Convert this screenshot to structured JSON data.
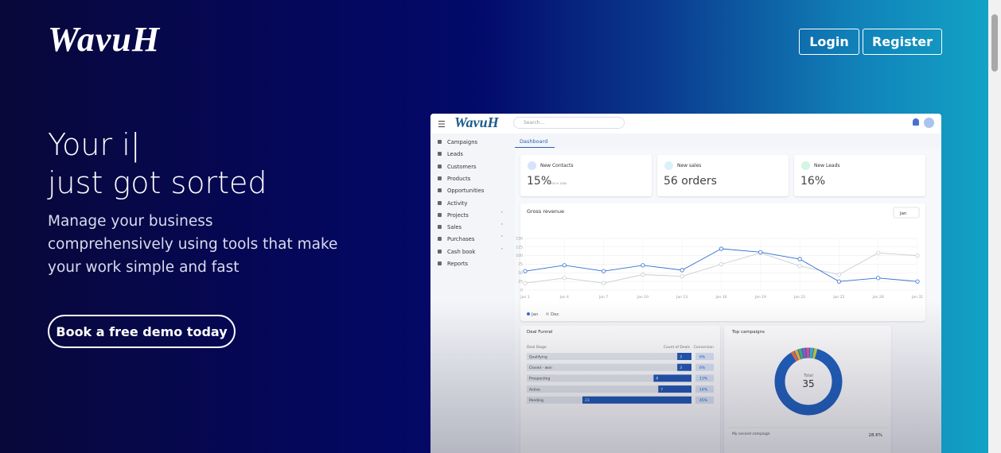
{
  "header": {
    "logo": "WavuH",
    "login": "Login",
    "register": "Register"
  },
  "hero": {
    "title_line1": "Your i|",
    "title_line2": "just got sorted",
    "subtitle": "Manage your business comprehensively using tools that make your work simple and fast",
    "cta": "Book a free demo today"
  },
  "dashboard": {
    "logo": "WavuH",
    "search": "Search...",
    "tab": "Dashboard",
    "menu": [
      "Campaigns",
      "Leads",
      "Customers",
      "Products",
      "Opportunities",
      "Activity",
      "Projects",
      "Sales",
      "Purchases",
      "Cash book",
      "Reports"
    ],
    "cards": [
      {
        "label": "New Contacts",
        "value": "15%",
        "note": "2500 in 2000"
      },
      {
        "label": "New sales",
        "value": "56 orders"
      },
      {
        "label": "New Leads",
        "value": "16%"
      }
    ],
    "revenue": {
      "title": "Gross revenue",
      "select": "Jan",
      "ylim": [
        0,
        150
      ],
      "yticks": [
        0,
        25,
        50,
        75,
        100,
        125,
        150
      ],
      "categories": [
        "Jan 1",
        "Jan 4",
        "Jan 7",
        "Jan 10",
        "Jan 13",
        "Jan 16",
        "Jan 19",
        "Jan 22",
        "Jan 25",
        "Jan 28",
        "Jan 31"
      ],
      "series": [
        {
          "name": "Jan",
          "color": "#2f6fd0",
          "values": [
            55,
            72,
            55,
            72,
            58,
            120,
            110,
            90,
            25,
            35,
            25
          ]
        },
        {
          "name": "Dec",
          "color": "#c8ccd4",
          "values": [
            20,
            35,
            20,
            45,
            40,
            75,
            108,
            70,
            45,
            108,
            100
          ]
        }
      ]
    },
    "funnel": {
      "title": "Deal Funnel",
      "headers": [
        "Deal Stage",
        "Count of Deals",
        "Conversion"
      ],
      "rows": [
        {
          "stage": "Qualifying",
          "count": 3,
          "conversion": "6%"
        },
        {
          "stage": "Closed - won",
          "count": 3,
          "conversion": "6%"
        },
        {
          "stage": "Prospecting",
          "count": 8,
          "conversion": "13%"
        },
        {
          "stage": "Active",
          "count": 7,
          "conversion": "14%"
        },
        {
          "stage": "Pending",
          "count": 23,
          "conversion": "45%"
        }
      ]
    },
    "campaigns": {
      "title": "Top campaigns",
      "total_label": "Total",
      "total": "35",
      "row_name": "My second campaign",
      "row_value": "28.6%"
    }
  }
}
